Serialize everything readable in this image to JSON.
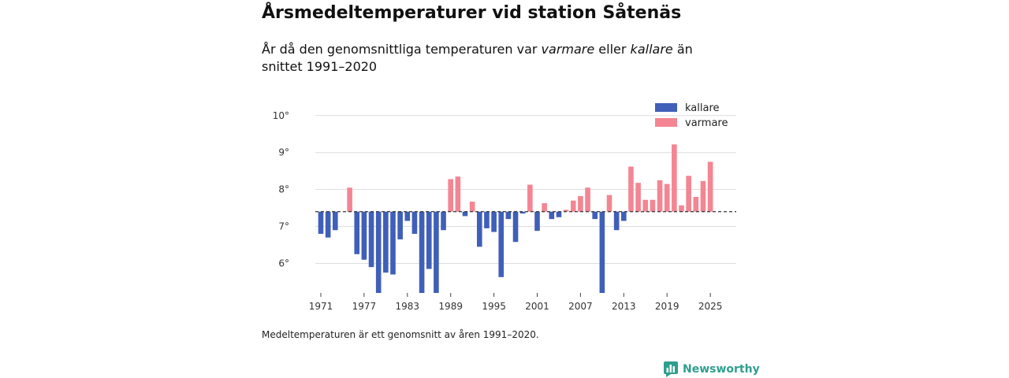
{
  "header": {
    "title": "Årsmedeltemperaturer vid station Såtenäs",
    "subtitle_pre": "År då den genomsnittliga temperaturen var ",
    "subtitle_warm": "varmare",
    "subtitle_mid": " eller ",
    "subtitle_cold": "kallare",
    "subtitle_post": " än snittet 1991–2020"
  },
  "footnote": "Medeltemperaturen är ett genomsnitt av åren 1991–2020.",
  "brand": {
    "name": "Newsworthy",
    "icon": "newsworthy-logo-icon"
  },
  "colors": {
    "colder": "#3f5fb8",
    "warmer": "#f48592",
    "grid": "#dddddd",
    "baseline": "#333333"
  },
  "chart_data": {
    "type": "bar",
    "title": "Årsmedeltemperaturer vid station Såtenäs",
    "xlabel": "",
    "ylabel": "",
    "baseline": 7.4,
    "ylim": [
      5.2,
      10.4
    ],
    "yticks": [
      6,
      7,
      8,
      9,
      10
    ],
    "ytick_labels": [
      "6°",
      "7°",
      "8°",
      "9°",
      "10°"
    ],
    "xticks": [
      1971,
      1977,
      1983,
      1989,
      1995,
      2001,
      2007,
      2013,
      2019,
      2025
    ],
    "xtick_labels": [
      "1971",
      "1977",
      "1983",
      "1989",
      "1995",
      "2001",
      "2007",
      "2013",
      "2019",
      "2025"
    ],
    "legend": {
      "position": "top-right",
      "entries": [
        "kallare",
        "varmare"
      ]
    },
    "years": [
      1971,
      1972,
      1973,
      1974,
      1975,
      1976,
      1977,
      1978,
      1979,
      1980,
      1981,
      1982,
      1983,
      1984,
      1985,
      1986,
      1987,
      1988,
      1989,
      1990,
      1991,
      1992,
      1993,
      1994,
      1995,
      1996,
      1997,
      1998,
      1999,
      2000,
      2001,
      2002,
      2003,
      2004,
      2005,
      2006,
      2007,
      2008,
      2009,
      2010,
      2011,
      2012,
      2013,
      2014,
      2015,
      2016,
      2017,
      2018,
      2019,
      2020,
      2021,
      2022,
      2023,
      2024,
      2025
    ],
    "values": [
      6.8,
      6.7,
      6.9,
      7.4,
      8.05,
      6.25,
      6.1,
      5.9,
      5.2,
      5.75,
      5.7,
      6.65,
      7.15,
      6.8,
      5.2,
      5.85,
      5.2,
      6.9,
      8.28,
      8.35,
      7.28,
      7.67,
      6.45,
      6.95,
      6.85,
      5.63,
      7.2,
      6.58,
      7.35,
      8.13,
      6.88,
      7.63,
      7.2,
      7.25,
      7.45,
      7.7,
      7.82,
      8.05,
      7.2,
      5.2,
      7.85,
      6.9,
      7.15,
      8.62,
      8.18,
      7.72,
      7.72,
      8.25,
      8.15,
      9.22,
      7.57,
      8.37,
      7.8,
      8.23,
      8.75
    ]
  }
}
